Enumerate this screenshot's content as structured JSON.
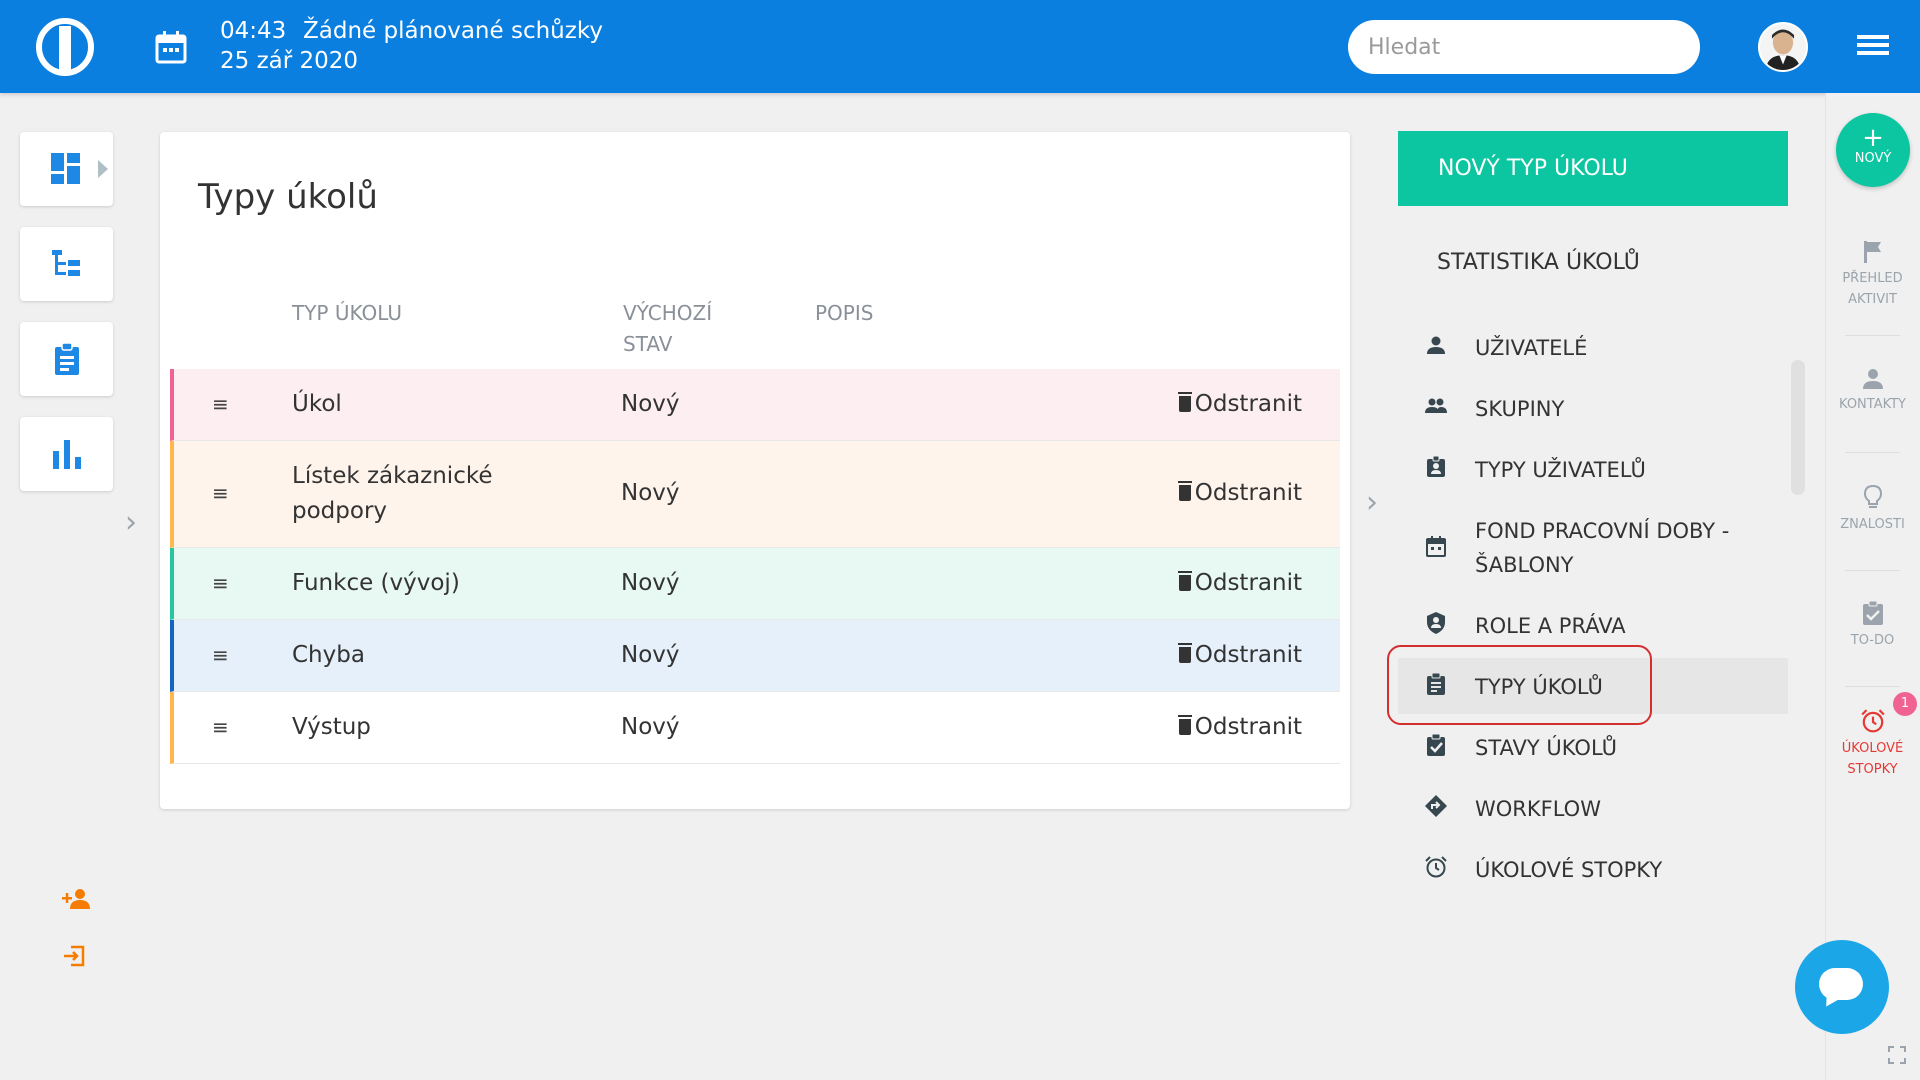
{
  "header": {
    "time": "04:43",
    "meeting": "Žádné plánované schůzky",
    "date": "25 zář 2020",
    "search_placeholder": "Hledat"
  },
  "main": {
    "title": "Typy úkolů",
    "columns": {
      "type": "TYP ÚKOLU",
      "default_state_line1": "VÝCHOZÍ",
      "default_state_line2": "STAV",
      "description": "POPIS"
    },
    "rows": [
      {
        "name": "Úkol",
        "state": "Nový",
        "delete": "Odstranit",
        "color": "#f06292",
        "bg": "#fdeef1"
      },
      {
        "name": "Lístek zákaznické podpory",
        "state": "Nový",
        "delete": "Odstranit",
        "color": "#ffb74d",
        "bg": "#fff4ec"
      },
      {
        "name": "Funkce (vývoj)",
        "state": "Nový",
        "delete": "Odstranit",
        "color": "#26c6a0",
        "bg": "#e8f8f3"
      },
      {
        "name": "Chyba",
        "state": "Nový",
        "delete": "Odstranit",
        "color": "#1565c0",
        "bg": "#e5f0fa"
      },
      {
        "name": "Výstup",
        "state": "Nový",
        "delete": "Odstranit",
        "color": "#ffb74d",
        "bg": "#ffffff"
      }
    ]
  },
  "right_panel": {
    "new_button": "NOVÝ TYP ÚKOLU",
    "stats_heading": "STATISTIKA ÚKOLŮ",
    "menu": [
      {
        "label": "UŽIVATELÉ",
        "icon": "user-icon"
      },
      {
        "label": "SKUPINY",
        "icon": "group-icon"
      },
      {
        "label": "TYPY UŽIVATELŮ",
        "icon": "user-badge-icon"
      },
      {
        "label": "FOND PRACOVNÍ DOBY - ŠABLONY",
        "icon": "calendar-icon"
      },
      {
        "label": "ROLE A PRÁVA",
        "icon": "shield-user-icon"
      },
      {
        "label": "TYPY ÚKOLŮ",
        "icon": "clipboard-icon",
        "active": true
      },
      {
        "label": "STAVY ÚKOLŮ",
        "icon": "checklist-icon"
      },
      {
        "label": "WORKFLOW",
        "icon": "diamond-arrow-icon"
      },
      {
        "label": "ÚKOLOVÉ STOPKY",
        "icon": "alarm-icon"
      }
    ]
  },
  "rail": {
    "new_label": "NOVÝ",
    "items": [
      {
        "line1": "PŘEHLED",
        "line2": "AKTIVIT",
        "icon": "flag-icon"
      },
      {
        "line1": "KONTAKTY",
        "line2": "",
        "icon": "person-icon"
      },
      {
        "line1": "ZNALOSTI",
        "line2": "",
        "icon": "lightbulb-icon"
      },
      {
        "line1": "TO-DO",
        "line2": "",
        "icon": "todo-icon"
      },
      {
        "line1": "ÚKOLOVÉ",
        "line2": "STOPKY",
        "icon": "alarm-icon"
      }
    ],
    "badge_count": "1"
  },
  "colors": {
    "header_blue": "#0a7fe0",
    "accent_green": "#0bc6a0",
    "highlight_red": "#d32f2f",
    "sidebar_icon_blue": "#1e88e5",
    "sidebar_small_orange": "#f57c00"
  }
}
